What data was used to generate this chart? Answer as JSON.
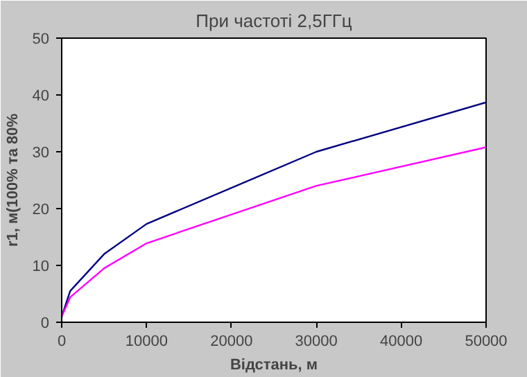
{
  "chart_data": {
    "type": "line",
    "title": "При частоті 2,5ГГц",
    "xlabel": "Відстань, м",
    "ylabel": "r1, м(100% та 80%",
    "x": [
      0,
      1000,
      5000,
      10000,
      30000,
      50000
    ],
    "series": [
      {
        "color": "#000080",
        "values": [
          1,
          5.5,
          12,
          17.3,
          30,
          38.7
        ]
      },
      {
        "color": "#ff00ff",
        "values": [
          1,
          4.4,
          9.5,
          13.9,
          24,
          30.8
        ]
      }
    ],
    "xlim": [
      0,
      50000
    ],
    "ylim": [
      0,
      50
    ],
    "xticks": [
      0,
      10000,
      20000,
      30000,
      40000,
      50000
    ],
    "yticks": [
      0,
      10,
      20,
      30,
      40,
      50
    ],
    "grid": false,
    "marker": "none",
    "line_style": "solid"
  }
}
